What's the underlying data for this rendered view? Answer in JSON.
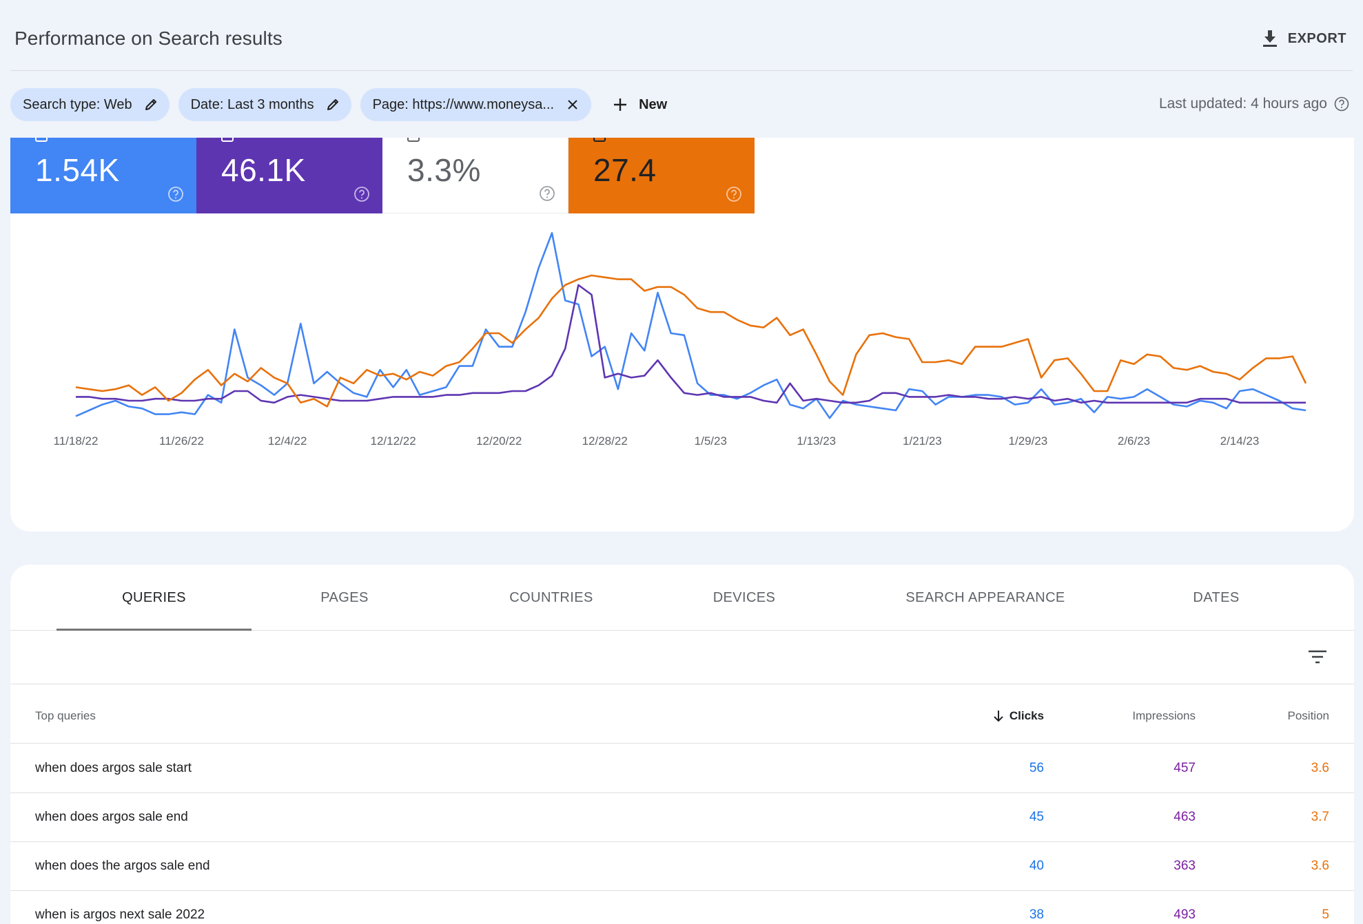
{
  "header": {
    "title": "Performance on Search results",
    "export_label": "EXPORT"
  },
  "filters": {
    "chips": [
      {
        "label": "Search type: Web"
      },
      {
        "label": "Date: Last 3 months"
      },
      {
        "label": "Page: https://www.moneysa..."
      }
    ],
    "new_label": "New",
    "last_updated": "Last updated: 4 hours ago"
  },
  "metrics": {
    "clicks": {
      "value": "1.54K",
      "color": "#4285f4"
    },
    "impressions": {
      "value": "46.1K",
      "color": "#5e35b1"
    },
    "ctr": {
      "value": "3.3%"
    },
    "position": {
      "value": "27.4",
      "color": "#e8710a"
    }
  },
  "chart_data": {
    "type": "line",
    "x_tick_labels": [
      "11/18/22",
      "11/26/22",
      "12/4/22",
      "12/12/22",
      "12/20/22",
      "12/28/22",
      "1/5/23",
      "1/13/23",
      "1/21/23",
      "1/29/23",
      "2/6/23",
      "2/14/23"
    ],
    "x_start": "11/18/22",
    "x_end": "2/16/23",
    "grid": false,
    "series": [
      {
        "key": "clicks",
        "color": "#4285f4",
        "values": [
          2,
          5,
          8,
          10,
          7,
          6,
          3,
          3,
          4,
          3,
          13,
          9,
          47,
          22,
          18,
          13,
          19,
          50,
          19,
          25,
          19,
          14,
          12,
          26,
          17,
          26,
          13,
          15,
          17,
          28,
          28,
          47,
          38,
          38,
          56,
          79,
          97,
          62,
          60,
          33,
          38,
          16,
          45,
          36,
          66,
          45,
          44,
          19,
          13,
          13,
          11,
          14,
          18,
          21,
          8,
          6,
          11,
          1,
          10,
          8,
          7,
          6,
          5,
          16,
          15,
          8,
          12,
          12,
          13,
          13,
          12,
          8,
          9,
          16,
          8,
          9,
          11,
          4,
          12,
          11,
          12,
          16,
          12,
          8,
          7,
          10,
          9,
          6,
          15,
          16,
          13,
          10,
          6,
          5
        ]
      },
      {
        "key": "impressions",
        "color": "#5e35b1",
        "values": [
          12,
          12,
          11,
          11,
          10,
          10,
          11,
          11,
          10,
          10,
          11,
          11,
          15,
          15,
          10,
          9,
          12,
          13,
          12,
          11,
          10,
          10,
          10,
          11,
          12,
          12,
          12,
          12,
          13,
          13,
          14,
          14,
          14,
          15,
          15,
          18,
          23,
          37,
          70,
          65,
          22,
          24,
          22,
          23,
          31,
          22,
          14,
          13,
          14,
          12,
          12,
          12,
          10,
          9,
          19,
          10,
          11,
          10,
          9,
          9,
          10,
          14,
          14,
          12,
          12,
          12,
          13,
          12,
          12,
          11,
          11,
          12,
          11,
          12,
          10,
          11,
          9,
          10,
          9,
          9,
          9,
          9,
          9,
          9,
          9,
          11,
          11,
          11,
          9,
          9,
          9,
          9,
          9,
          9
        ]
      },
      {
        "key": "position",
        "color": "#e8710a",
        "values": [
          17,
          16,
          15,
          16,
          18,
          13,
          17,
          10,
          14,
          21,
          26,
          18,
          24,
          20,
          27,
          22,
          19,
          9,
          11,
          7,
          22,
          19,
          26,
          23,
          24,
          21,
          25,
          23,
          28,
          30,
          37,
          45,
          45,
          40,
          47,
          53,
          63,
          70,
          73,
          75,
          74,
          73,
          73,
          67,
          69,
          69,
          65,
          58,
          56,
          56,
          52,
          49,
          48,
          53,
          44,
          47,
          34,
          20,
          13,
          34,
          44,
          45,
          43,
          42,
          30,
          30,
          31,
          29,
          38,
          38,
          38,
          40,
          42,
          22,
          31,
          32,
          24,
          15,
          15,
          31,
          29,
          34,
          33,
          27,
          26,
          28,
          25,
          24,
          21,
          27,
          32,
          32,
          33,
          19
        ]
      }
    ]
  },
  "table": {
    "tabs": [
      "QUERIES",
      "PAGES",
      "COUNTRIES",
      "DEVICES",
      "SEARCH APPEARANCE",
      "DATES"
    ],
    "active_tab": "QUERIES",
    "columns": {
      "query": "Top queries",
      "clicks": "Clicks",
      "impressions": "Impressions",
      "position": "Position"
    },
    "rows": [
      {
        "query": "when does argos sale start",
        "clicks": "56",
        "impressions": "457",
        "position": "3.6"
      },
      {
        "query": "when does argos sale end",
        "clicks": "45",
        "impressions": "463",
        "position": "3.7"
      },
      {
        "query": "when does the argos sale end",
        "clicks": "40",
        "impressions": "363",
        "position": "3.6"
      },
      {
        "query": "when is argos next sale 2022",
        "clicks": "38",
        "impressions": "493",
        "position": "5"
      }
    ]
  }
}
